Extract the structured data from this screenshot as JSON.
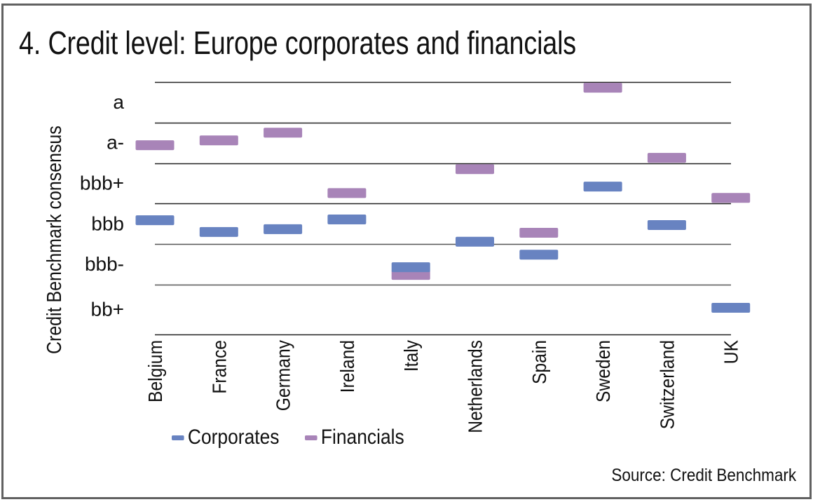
{
  "chart_data": {
    "type": "scatter",
    "marker": "horizontal-bar",
    "title": "4. Credit level: Europe corporates and financials",
    "xlabel": "",
    "ylabel": "Credit Benchmark consensus",
    "source": "Source: Credit Benchmark",
    "categories": [
      "Belgium",
      "France",
      "Germany",
      "Ireland",
      "Italy",
      "Netherlands",
      "Spain",
      "Sweden",
      "Switzerland",
      "UK"
    ],
    "y_scale_note": "notch scale: bb+ = 1, bbb- = 2, bbb = 3, bbb+ = 4, a- = 5, a = 6",
    "y_ticks": [
      {
        "label": "bb+",
        "value": 1
      },
      {
        "label": "bbb-",
        "value": 2
      },
      {
        "label": "bbb",
        "value": 3
      },
      {
        "label": "bbb+",
        "value": 4
      },
      {
        "label": "a-",
        "value": 5
      },
      {
        "label": "a",
        "value": 6
      }
    ],
    "gridlines_at": [
      1.5,
      2.5,
      3.5,
      4.5,
      5.5,
      6.5
    ],
    "ylim": [
      0.27,
      6.5
    ],
    "grid": true,
    "legend_position": "bottom-left",
    "series": [
      {
        "name": "Financials",
        "color": "#a884b8",
        "values": [
          4.94,
          5.06,
          5.25,
          3.76,
          1.74,
          4.35,
          2.78,
          6.36,
          4.63,
          3.64
        ]
      },
      {
        "name": "Corporates",
        "color": "#6883c1",
        "values": [
          3.09,
          2.8,
          2.87,
          3.11,
          1.93,
          2.56,
          2.24,
          3.92,
          2.97,
          0.93
        ]
      }
    ],
    "legend": [
      {
        "name": "Corporates",
        "color": "#6883c1"
      },
      {
        "name": "Financials",
        "color": "#a884b8"
      }
    ]
  }
}
